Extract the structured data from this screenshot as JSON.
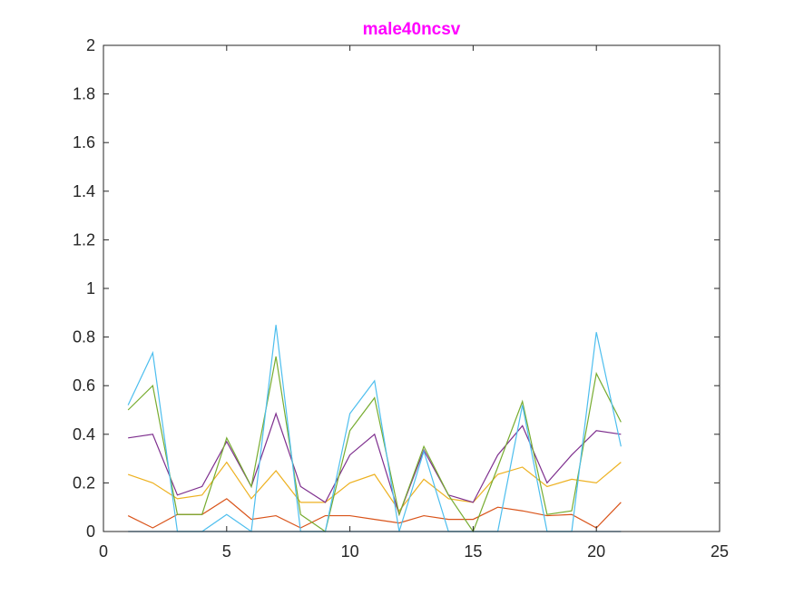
{
  "chart_data": {
    "type": "line",
    "title": "male40ncsv",
    "title_color": "#FF00FF",
    "xlabel": "",
    "ylabel": "",
    "xlim": [
      0,
      25
    ],
    "ylim": [
      0,
      2
    ],
    "x_ticks": [
      0,
      5,
      10,
      15,
      20,
      25
    ],
    "y_ticks": [
      0,
      0.2,
      0.4,
      0.6,
      0.8,
      1,
      1.2,
      1.4,
      1.6,
      1.8,
      2
    ],
    "grid": false,
    "legend": "none",
    "x": [
      1,
      2,
      3,
      4,
      5,
      6,
      7,
      8,
      9,
      10,
      11,
      12,
      13,
      14,
      15,
      16,
      17,
      18,
      19,
      20,
      21
    ],
    "series": [
      {
        "color": "#0072BD",
        "values": [
          0,
          0,
          0,
          0,
          0,
          0,
          0,
          0,
          0,
          0,
          0,
          0,
          0,
          0,
          0,
          0,
          0,
          0,
          0,
          0,
          0
        ]
      },
      {
        "color": "#D95319",
        "values": [
          0.065,
          0.015,
          0.07,
          0.07,
          0.135,
          0.05,
          0.065,
          0.015,
          0.065,
          0.065,
          0.05,
          0.035,
          0.065,
          0.05,
          0.05,
          0.1,
          0.085,
          0.065,
          0.07,
          0.015,
          0.12
        ]
      },
      {
        "color": "#EDB120",
        "values": [
          0.235,
          0.2,
          0.135,
          0.15,
          0.285,
          0.135,
          0.25,
          0.12,
          0.12,
          0.2,
          0.235,
          0.085,
          0.215,
          0.135,
          0.12,
          0.235,
          0.265,
          0.185,
          0.215,
          0.2,
          0.285
        ]
      },
      {
        "color": "#7E2F8E",
        "values": [
          0.385,
          0.4,
          0.15,
          0.185,
          0.37,
          0.185,
          0.485,
          0.185,
          0.12,
          0.315,
          0.4,
          0.07,
          0.335,
          0.15,
          0.12,
          0.315,
          0.435,
          0.2,
          0.315,
          0.415,
          0.4
        ]
      },
      {
        "color": "#77AC30",
        "values": [
          0.5,
          0.6,
          0.07,
          0.07,
          0.385,
          0.185,
          0.72,
          0.07,
          0,
          0.415,
          0.55,
          0.07,
          0.35,
          0.15,
          0,
          0.265,
          0.535,
          0.07,
          0.085,
          0.65,
          0.45
        ]
      },
      {
        "color": "#4DBEEE",
        "values": [
          0.52,
          0.735,
          0,
          0,
          0.07,
          0,
          0.85,
          0,
          0,
          0.485,
          0.62,
          0,
          0.33,
          0,
          0,
          0,
          0.52,
          0,
          0,
          0.82,
          0.35
        ]
      }
    ]
  }
}
